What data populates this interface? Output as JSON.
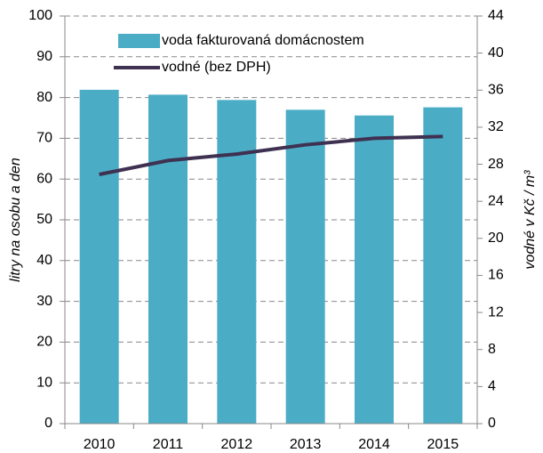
{
  "chart_data": {
    "type": "bar",
    "categories": [
      "2010",
      "2011",
      "2012",
      "2013",
      "2014",
      "2015"
    ],
    "series": [
      {
        "name": "voda fakturovaná domácnostem",
        "type": "bar",
        "color": "#4bacc6",
        "values": [
          81.9,
          80.7,
          79.4,
          77.0,
          75.6,
          77.6
        ]
      },
      {
        "name": "vodné (bez DPH)",
        "type": "line",
        "axis": "y2",
        "color": "#3f3151",
        "values": [
          26.9,
          28.4,
          29.1,
          30.1,
          30.8,
          31.0
        ]
      }
    ],
    "ylabel": "litry na osobu a den",
    "y2label": "vodné v Kč / m³",
    "ylim": [
      0,
      100
    ],
    "yticks": [
      0,
      10,
      20,
      30,
      40,
      50,
      60,
      70,
      80,
      90,
      100
    ],
    "y2lim": [
      0,
      44
    ],
    "y2ticks": [
      0,
      4,
      8,
      12,
      16,
      20,
      24,
      28,
      32,
      36,
      40,
      44
    ],
    "grid": true,
    "legend": "top-left"
  }
}
